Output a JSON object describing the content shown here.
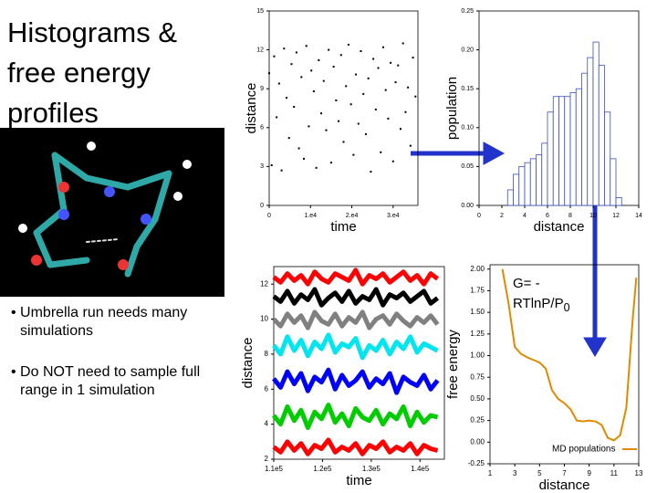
{
  "title": "Histograms & free energy profiles",
  "bullets": [
    "Umbrella run needs many simulations",
    "Do NOT need to sample full range in 1 simulation"
  ],
  "equation": {
    "lhs": "G=  -",
    "rhs": "RTlnP/P",
    "sub": "0"
  },
  "chart_data": [
    {
      "type": "scatter",
      "x_label": "time",
      "y_label": "distance",
      "color": "#000000",
      "x": [
        0,
        600,
        1200,
        1800,
        2400,
        3000,
        3600,
        4200,
        4800,
        5400,
        6000,
        6600,
        7200,
        7800,
        8400,
        9000,
        9600,
        10200,
        10800,
        11400,
        12000,
        12600,
        13200,
        13800,
        14400,
        15000,
        15600,
        16200,
        16800,
        17400,
        18000,
        18600,
        19200,
        19800,
        20400,
        21000,
        21600,
        22200,
        22800,
        23400,
        24000,
        24600,
        25200,
        25800,
        26400,
        27000,
        27600,
        28200,
        28800,
        29400,
        30000,
        30600,
        31200,
        31800,
        32400,
        33000,
        33600,
        34200,
        34800,
        35400
      ],
      "values": [
        10.2,
        3.1,
        11.5,
        6.8,
        9.4,
        2.7,
        12.1,
        8.3,
        5.2,
        10.9,
        7.6,
        11.8,
        4.4,
        9.9,
        3.6,
        12.3,
        6.1,
        10.4,
        8.8,
        2.9,
        11.2,
        7.1,
        9.6,
        5.8,
        12.0,
        3.3,
        10.7,
        8.1,
        6.5,
        11.6,
        4.9,
        9.2,
        12.4,
        7.8,
        3.9,
        10.1,
        6.3,
        11.9,
        8.6,
        5.5,
        9.8,
        2.6,
        11.3,
        7.4,
        10.6,
        4.1,
        12.2,
        8.9,
        6.7,
        11.0,
        3.4,
        9.5,
        10.8,
        5.9,
        12.5,
        7.2,
        9.1,
        4.6,
        11.4,
        8.4
      ],
      "xlim": [
        0,
        36000
      ],
      "xticks": [
        0,
        {
          "value": 10000,
          "label": "1.e4"
        },
        {
          "value": 20000,
          "label": "2.e4"
        },
        {
          "value": 30000,
          "label": "3.e4"
        }
      ],
      "ylim": [
        0,
        15
      ],
      "yticks": [
        0,
        3,
        6,
        9,
        12,
        15
      ]
    },
    {
      "type": "histogram",
      "x_label": "distance",
      "y_label": "population",
      "color": "#3a4fc0",
      "bins": [
        2.5,
        3,
        3.5,
        4,
        4.5,
        5,
        5.5,
        6,
        6.5,
        7,
        7.5,
        8,
        8.5,
        9,
        9.5,
        10,
        10.5,
        11,
        11.5,
        12,
        12.5
      ],
      "values": [
        0.02,
        0.04,
        0.05,
        0.055,
        0.06,
        0.065,
        0.08,
        0.12,
        0.14,
        0.14,
        0.14,
        0.145,
        0.15,
        0.17,
        0.19,
        0.21,
        0.18,
        0.12,
        0.06,
        0.01
      ],
      "xlim": [
        0,
        14
      ],
      "xticks": [
        0,
        2,
        4,
        6,
        8,
        10,
        12,
        14
      ],
      "ylim": [
        0,
        0.25
      ],
      "yticks": [
        {
          "value": 0,
          "label": "0.00"
        },
        {
          "value": 0.05,
          "label": "0.05"
        },
        {
          "value": 0.1,
          "label": "0.10"
        },
        {
          "value": 0.15,
          "label": "0.15"
        },
        {
          "value": 0.2,
          "label": "0.20"
        },
        {
          "value": 0.25,
          "label": "0.25"
        }
      ]
    },
    {
      "type": "line",
      "x_label": "time",
      "y_label": "distance",
      "x": [
        110000,
        111400,
        112800,
        114200,
        115600,
        117000,
        118400,
        119800,
        121200,
        122600,
        124000,
        125400,
        126800,
        128200,
        129600,
        131000,
        132400,
        133800,
        135200,
        136600,
        138000,
        139400,
        140800,
        142200,
        143600
      ],
      "series": [
        {
          "color": "#ff0000",
          "values": [
            12.4,
            12.1,
            12.6,
            12.2,
            12.5,
            12.0,
            12.7,
            12.3,
            12.1,
            12.6,
            12.4,
            12.2,
            12.8,
            12.0,
            12.5,
            12.3,
            12.6,
            12.1,
            12.4,
            12.7,
            12.2,
            12.5,
            12.0,
            12.6,
            12.3
          ]
        },
        {
          "color": "#000000",
          "values": [
            11.3,
            11.0,
            11.6,
            10.9,
            11.4,
            11.1,
            11.7,
            10.8,
            11.2,
            11.5,
            11.0,
            11.6,
            10.9,
            11.3,
            11.1,
            11.7,
            10.8,
            11.4,
            11.2,
            11.5,
            11.0,
            11.3,
            11.6,
            10.9,
            11.2
          ]
        },
        {
          "color": "#808080",
          "values": [
            10.0,
            9.6,
            10.3,
            9.8,
            10.2,
            9.5,
            10.4,
            9.9,
            9.7,
            10.3,
            9.6,
            10.1,
            9.8,
            10.4,
            9.5,
            10.0,
            10.2,
            9.7,
            10.3,
            9.9,
            9.6,
            10.1,
            9.8,
            10.2,
            9.7
          ]
        },
        {
          "color": "#00e5ee",
          "values": [
            8.5,
            8.0,
            9.0,
            8.2,
            8.8,
            7.9,
            8.7,
            8.3,
            9.1,
            8.1,
            8.6,
            8.4,
            8.9,
            7.8,
            8.5,
            8.2,
            8.8,
            8.0,
            8.7,
            8.3,
            9.0,
            8.1,
            8.6,
            8.4,
            8.2
          ]
        },
        {
          "color": "#0000ff",
          "values": [
            6.6,
            6.1,
            7.0,
            6.3,
            6.9,
            5.9,
            6.7,
            6.4,
            7.1,
            6.0,
            6.8,
            6.2,
            6.5,
            7.0,
            6.1,
            6.6,
            6.3,
            6.9,
            5.8,
            6.7,
            6.4,
            6.2,
            6.8,
            6.0,
            6.5
          ]
        },
        {
          "color": "#00cc00",
          "values": [
            4.5,
            4.0,
            5.0,
            4.2,
            4.8,
            3.8,
            4.7,
            4.3,
            5.1,
            4.1,
            4.6,
            3.9,
            4.9,
            4.4,
            4.2,
            4.8,
            4.0,
            4.6,
            4.3,
            5.0,
            3.9,
            4.7,
            4.1,
            4.5,
            4.4
          ]
        },
        {
          "color": "#ff0000",
          "values": [
            2.7,
            2.4,
            3.0,
            2.5,
            2.9,
            2.3,
            2.8,
            2.6,
            3.1,
            2.4,
            2.7,
            2.5,
            2.9,
            2.3,
            2.8,
            2.6,
            3.0,
            2.4,
            2.7,
            2.5,
            2.9,
            2.3,
            2.8,
            2.6,
            2.5
          ]
        }
      ],
      "xlim": [
        110000,
        145000
      ],
      "xticks": [
        {
          "value": 110000,
          "label": "1.1e5"
        },
        {
          "value": 120000,
          "label": "1.2e5"
        },
        {
          "value": 130000,
          "label": "1.3e5"
        },
        {
          "value": 140000,
          "label": "1.4e5"
        }
      ],
      "ylim": [
        2,
        13
      ],
      "yticks": [
        2,
        4,
        6,
        8,
        10,
        12
      ]
    },
    {
      "type": "line",
      "x_label": "distance",
      "y_label": "free energy",
      "legend": "lower right",
      "x": [
        2,
        2.5,
        3,
        3.5,
        4,
        4.5,
        5,
        5.5,
        6,
        6.5,
        7,
        7.5,
        8,
        8.5,
        9,
        9.5,
        10,
        10.5,
        11,
        11.5,
        12,
        12.5,
        12.8
      ],
      "series": [
        {
          "name": "MD populations",
          "color": "#e08a00",
          "values": [
            2.0,
            1.6,
            1.1,
            1.02,
            0.98,
            0.95,
            0.92,
            0.85,
            0.6,
            0.5,
            0.45,
            0.38,
            0.25,
            0.24,
            0.25,
            0.24,
            0.2,
            0.05,
            0.02,
            0.08,
            0.4,
            1.4,
            1.9
          ]
        }
      ],
      "xlim": [
        1,
        13
      ],
      "xticks": [
        1,
        3,
        5,
        7,
        9,
        11,
        13
      ],
      "ylim": [
        -0.25,
        2.05
      ],
      "yticks": [
        {
          "value": -0.25,
          "label": "-0.25"
        },
        {
          "value": 0,
          "label": "0.00"
        },
        {
          "value": 0.25,
          "label": "0.25"
        },
        {
          "value": 0.5,
          "label": "0.50"
        },
        {
          "value": 0.75,
          "label": "0.75"
        },
        {
          "value": 1,
          "label": "1.00"
        },
        {
          "value": 1.25,
          "label": "1.25"
        },
        {
          "value": 1.5,
          "label": "1.50"
        },
        {
          "value": 1.75,
          "label": "1.75"
        },
        {
          "value": 2,
          "label": "2.00"
        }
      ]
    }
  ]
}
